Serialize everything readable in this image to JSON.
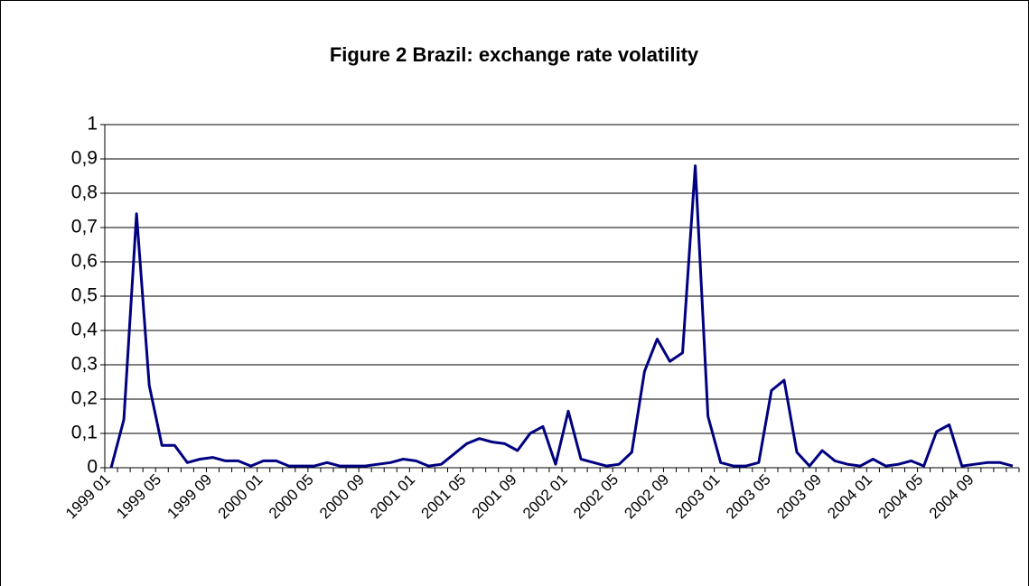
{
  "chart_data": {
    "type": "line",
    "title": "Figure 2 Brazil: exchange rate volatility",
    "categories": [
      "1999 01",
      null,
      null,
      null,
      "1999 05",
      null,
      null,
      null,
      "1999 09",
      null,
      null,
      null,
      "2000 01",
      null,
      null,
      null,
      "2000 05",
      null,
      null,
      null,
      "2000 09",
      null,
      null,
      null,
      "2001 01",
      null,
      null,
      null,
      "2001 05",
      null,
      null,
      null,
      "2001 09",
      null,
      null,
      null,
      "2002 01",
      null,
      null,
      null,
      "2002 05",
      null,
      null,
      null,
      "2002 09",
      null,
      null,
      null,
      "2003 01",
      null,
      null,
      null,
      "2003 05",
      null,
      null,
      null,
      "2003 09",
      null,
      null,
      null,
      "2004 01",
      null,
      null,
      null,
      "2004 05",
      null,
      null,
      null,
      "2004 09",
      null,
      null,
      null
    ],
    "series": [
      {
        "color": "#000080",
        "values": [
          0,
          0.14,
          0.74,
          0.24,
          0.065,
          0.065,
          0.015,
          0.025,
          0.03,
          0.02,
          0.02,
          0.005,
          0.02,
          0.02,
          0.005,
          0.005,
          0.005,
          0.015,
          0.005,
          0.005,
          0.005,
          0.01,
          0.015,
          0.025,
          0.02,
          0.005,
          0.01,
          0.04,
          0.07,
          0.085,
          0.075,
          0.07,
          0.05,
          0.1,
          0.12,
          0.01,
          0.165,
          0.025,
          0.015,
          0.005,
          0.01,
          0.045,
          0.28,
          0.375,
          0.31,
          0.335,
          0.88,
          0.15,
          0.015,
          0.005,
          0.005,
          0.015,
          0.225,
          0.255,
          0.045,
          0.005,
          0.05,
          0.02,
          0.01,
          0.005,
          0.025,
          0.005,
          0.01,
          0.02,
          0.005,
          0.105,
          0.125,
          0.005,
          0.01,
          0.015,
          0.015,
          0.005
        ]
      }
    ],
    "ylim": [
      0,
      1
    ],
    "yticks": [
      0,
      {
        "value": 0.1,
        "label": "0,1"
      },
      {
        "value": 0.2,
        "label": "0,2"
      },
      {
        "value": 0.3,
        "label": "0,3"
      },
      {
        "value": 0.4,
        "label": "0,4"
      },
      {
        "value": 0.5,
        "label": "0,5"
      },
      {
        "value": 0.6,
        "label": "0,6"
      },
      {
        "value": 0.7,
        "label": "0,7"
      },
      {
        "value": 0.8,
        "label": "0,8"
      },
      {
        "value": 0.9,
        "label": "0,9"
      },
      1
    ],
    "grid": true
  }
}
